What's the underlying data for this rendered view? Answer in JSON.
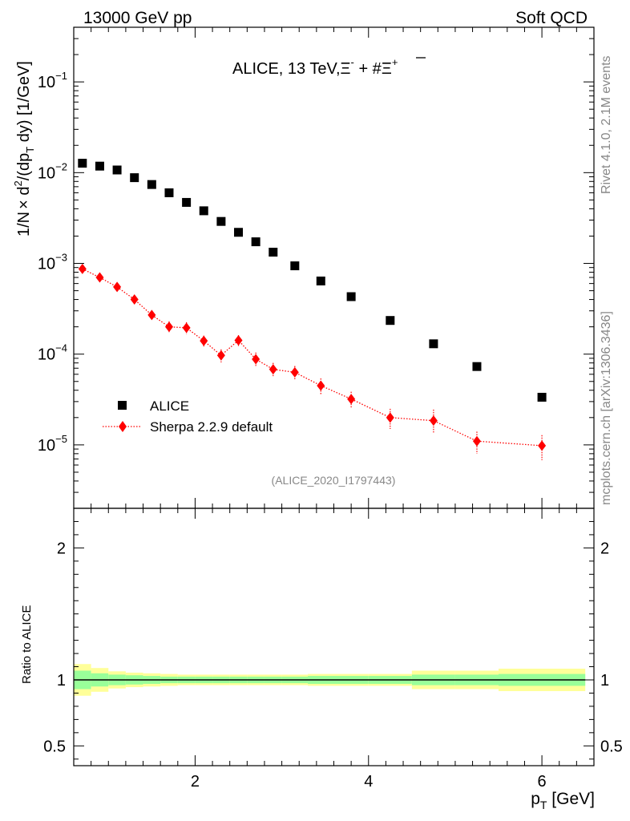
{
  "header": {
    "left": "13000 GeV pp",
    "right": "Soft QCD"
  },
  "side": {
    "top": "Rivet 4.1.0,  2.1M events",
    "bottom": "mcplots.cern.ch [arXiv:1306.3436]"
  },
  "colors": {
    "data": "#000000",
    "mc": "#ff0000",
    "band_inner": "#99ff99",
    "band_outer": "#ffff99"
  },
  "chart_data": [
    {
      "type": "scatter",
      "panel": "main",
      "title": "ALICE, 13 TeV,Ξ⁻ + #Ξ̅⁺",
      "title_parts": {
        "main": "ALICE, 13 TeV,",
        "xi": "Ξ",
        "xi_sup": "-",
        "plus": " + #",
        "xibar": "Ξ",
        "xibar_sup": "+"
      },
      "ylabel": "1/N × d²/(dp_T dy) [1/GeV]",
      "ylabel_parts": {
        "a": "1/N",
        "times": "×",
        "b": " d",
        "sup2": "2",
        "c": "/(dp",
        "sub": "T",
        "d": " dy) [1/GeV]"
      },
      "yscale": "log",
      "ylim": [
        2e-06,
        0.4
      ],
      "xlim": [
        0.6,
        6.6
      ],
      "ytick_labels": [
        {
          "value": 0.1,
          "base": "10",
          "exp": "−1"
        },
        {
          "value": 0.01,
          "base": "10",
          "exp": "−2"
        },
        {
          "value": 0.001,
          "base": "10",
          "exp": "−3"
        },
        {
          "value": 0.0001,
          "base": "10",
          "exp": "−4"
        },
        {
          "value": 1e-05,
          "base": "10",
          "exp": "−5"
        }
      ],
      "watermark": "(ALICE_2020_I1797443)",
      "legend_position": "left-center",
      "series": [
        {
          "name": "ALICE",
          "marker": "square",
          "color": "#000000",
          "x": [
            0.7,
            0.9,
            1.1,
            1.3,
            1.5,
            1.7,
            1.9,
            2.1,
            2.3,
            2.5,
            2.7,
            2.9,
            3.15,
            3.45,
            3.8,
            4.25,
            4.75,
            5.25,
            6.0
          ],
          "y": [
            0.0127,
            0.0118,
            0.0107,
            0.0088,
            0.0074,
            0.006,
            0.0047,
            0.0038,
            0.0029,
            0.0022,
            0.00173,
            0.00133,
            0.00094,
            0.00064,
            0.00043,
            0.000235,
            0.00013,
            7.3e-05,
            3.35e-05
          ]
        },
        {
          "name": "Sherpa 2.2.9 default",
          "marker": "diamond",
          "line": "dotted",
          "color": "#ff0000",
          "x": [
            0.7,
            0.9,
            1.1,
            1.3,
            1.5,
            1.7,
            1.9,
            2.1,
            2.3,
            2.5,
            2.7,
            2.9,
            3.15,
            3.45,
            3.8,
            4.25,
            4.75,
            5.25,
            6.0
          ],
          "y": [
            0.00087,
            0.0007,
            0.00055,
            0.0004,
            0.00027,
            0.0002,
            0.000195,
            0.00014,
            9.7e-05,
            0.000142,
            8.8e-05,
            6.8e-05,
            6.3e-05,
            4.5e-05,
            3.2e-05,
            2e-05,
            1.85e-05,
            1.1e-05,
            9.8e-06
          ],
          "y_err_low": [
            5e-05,
            4e-05,
            4e-05,
            3e-05,
            3e-05,
            3e-05,
            3e-05,
            2e-05,
            1.6e-05,
            2e-05,
            1.6e-05,
            1.2e-05,
            1.1e-05,
            9e-06,
            6.5e-06,
            5e-06,
            5e-06,
            3e-06,
            3e-06
          ],
          "y_err_high": [
            5e-05,
            4e-05,
            4e-05,
            3e-05,
            3e-05,
            3e-05,
            3e-05,
            2e-05,
            1.6e-05,
            2e-05,
            1.6e-05,
            1.2e-05,
            1.1e-05,
            9e-06,
            6.5e-06,
            5e-06,
            6e-06,
            3e-06,
            3e-06
          ]
        }
      ]
    },
    {
      "type": "area",
      "panel": "ratio",
      "ylabel": "Ratio to ALICE",
      "xlabel": "p_T [GeV]",
      "xlabel_parts": {
        "p": "p",
        "sub": "T",
        "rest": " [GeV]"
      },
      "xlim": [
        0.6,
        6.6
      ],
      "ylim": [
        0.35,
        2.3
      ],
      "xtick_labels": [
        {
          "value": 2,
          "label": "2"
        },
        {
          "value": 4,
          "label": "4"
        },
        {
          "value": 6,
          "label": "6"
        }
      ],
      "ytick_labels": [
        {
          "value": 0.5,
          "label": "0.5"
        },
        {
          "value": 1,
          "label": "1"
        },
        {
          "value": 2,
          "label": "2"
        }
      ],
      "bins": [
        [
          0.6,
          0.8
        ],
        [
          0.8,
          1.0
        ],
        [
          1.0,
          1.2
        ],
        [
          1.2,
          1.4
        ],
        [
          1.4,
          1.6
        ],
        [
          1.6,
          1.8
        ],
        [
          1.8,
          2.0
        ],
        [
          2.0,
          2.2
        ],
        [
          2.2,
          2.4
        ],
        [
          2.4,
          2.6
        ],
        [
          2.6,
          2.8
        ],
        [
          2.8,
          3.0
        ],
        [
          3.0,
          3.3
        ],
        [
          3.3,
          3.6
        ],
        [
          3.6,
          4.0
        ],
        [
          4.0,
          4.5
        ],
        [
          4.5,
          5.0
        ],
        [
          5.0,
          5.5
        ],
        [
          5.5,
          6.5
        ]
      ],
      "inner_band": [
        [
          0.93,
          1.07
        ],
        [
          0.95,
          1.05
        ],
        [
          0.96,
          1.04
        ],
        [
          0.965,
          1.035
        ],
        [
          0.97,
          1.03
        ],
        [
          0.975,
          1.025
        ],
        [
          0.975,
          1.025
        ],
        [
          0.975,
          1.025
        ],
        [
          0.975,
          1.025
        ],
        [
          0.975,
          1.025
        ],
        [
          0.975,
          1.025
        ],
        [
          0.975,
          1.025
        ],
        [
          0.975,
          1.025
        ],
        [
          0.97,
          1.03
        ],
        [
          0.97,
          1.03
        ],
        [
          0.97,
          1.03
        ],
        [
          0.96,
          1.04
        ],
        [
          0.96,
          1.04
        ],
        [
          0.955,
          1.045
        ]
      ],
      "outer_band": [
        [
          0.88,
          1.12
        ],
        [
          0.91,
          1.09
        ],
        [
          0.935,
          1.065
        ],
        [
          0.945,
          1.055
        ],
        [
          0.95,
          1.05
        ],
        [
          0.955,
          1.045
        ],
        [
          0.96,
          1.04
        ],
        [
          0.96,
          1.04
        ],
        [
          0.96,
          1.04
        ],
        [
          0.96,
          1.04
        ],
        [
          0.96,
          1.04
        ],
        [
          0.96,
          1.04
        ],
        [
          0.96,
          1.04
        ],
        [
          0.955,
          1.045
        ],
        [
          0.955,
          1.045
        ],
        [
          0.955,
          1.045
        ],
        [
          0.93,
          1.07
        ],
        [
          0.93,
          1.07
        ],
        [
          0.915,
          1.085
        ]
      ],
      "reference_line": 1.0
    }
  ]
}
